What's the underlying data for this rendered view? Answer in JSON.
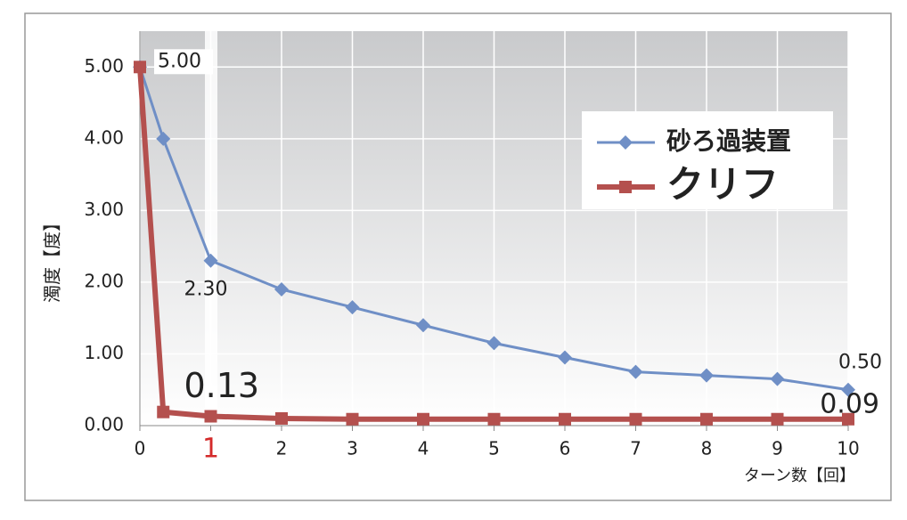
{
  "chart_data": {
    "type": "line",
    "x": [
      0,
      0.33,
      1,
      2,
      3,
      4,
      5,
      6,
      7,
      8,
      9,
      10
    ],
    "series": [
      {
        "name": "砂ろ過装置",
        "color": "#6f8fc6",
        "marker": "diamond",
        "values": [
          5.0,
          4.0,
          2.3,
          1.9,
          1.65,
          1.4,
          1.15,
          0.95,
          0.75,
          0.7,
          0.65,
          0.5
        ],
        "value_labels": [
          "5.00",
          null,
          "2.30",
          null,
          null,
          null,
          null,
          null,
          null,
          null,
          null,
          "0.50"
        ]
      },
      {
        "name": "クリフ",
        "color": "#b4504e",
        "marker": "square",
        "values": [
          5.0,
          0.19,
          0.13,
          0.1,
          0.09,
          0.09,
          0.09,
          0.09,
          0.09,
          0.09,
          0.09,
          0.09
        ],
        "value_labels": [
          null,
          null,
          "0.13",
          null,
          null,
          null,
          null,
          null,
          null,
          null,
          null,
          "0.09"
        ]
      }
    ],
    "xlim": [
      0,
      10
    ],
    "xticks": [
      0,
      1,
      2,
      3,
      4,
      5,
      6,
      7,
      8,
      9,
      10
    ],
    "ylim": [
      0,
      5.5
    ],
    "yticks": [
      {
        "value": 0,
        "label": "0.00"
      },
      {
        "value": 1,
        "label": "1.00"
      },
      {
        "value": 2,
        "label": "2.00"
      },
      {
        "value": 3,
        "label": "3.00"
      },
      {
        "value": 4,
        "label": "4.00"
      },
      {
        "value": 5,
        "label": "5.00"
      }
    ],
    "x_label": "ターン数【回】",
    "y_label": "濁度【度】",
    "grid": true,
    "legend": "upper right"
  }
}
